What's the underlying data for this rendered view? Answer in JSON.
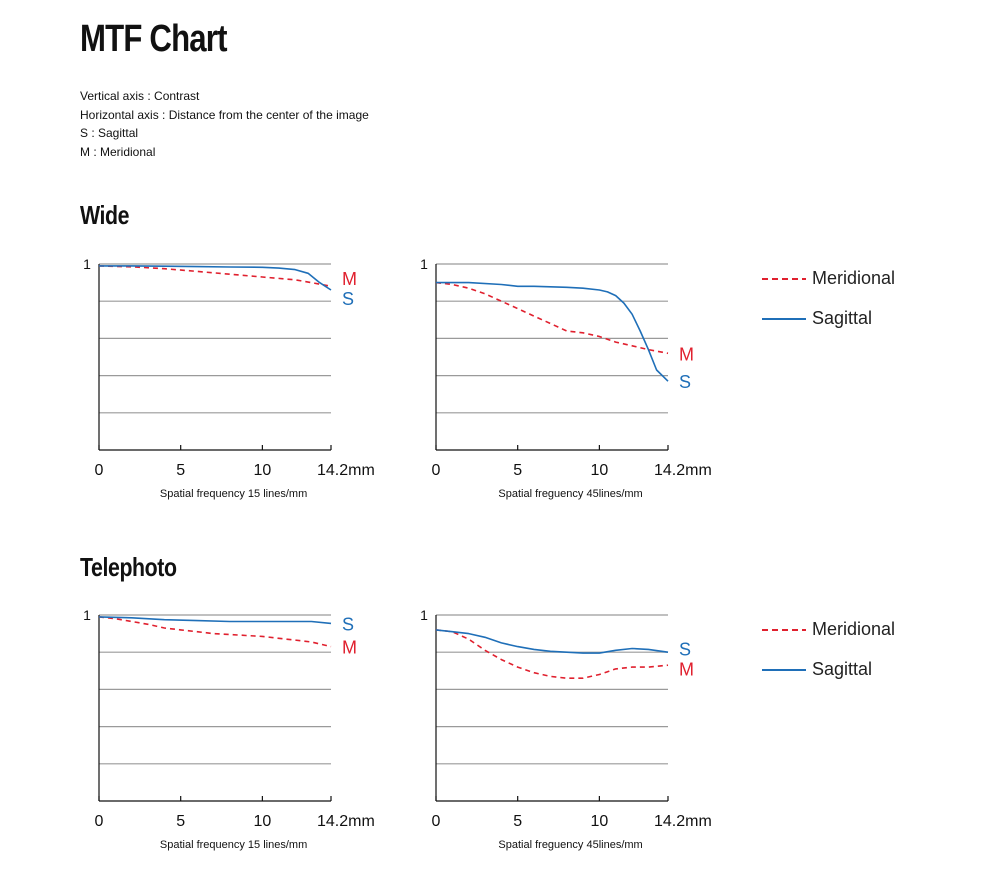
{
  "page": {
    "title": "MTF Chart",
    "notes": [
      "Vertical axis : Contrast",
      "Horizontal axis : Distance from the center of the image",
      "S : Sagittal",
      "M : Meridional"
    ]
  },
  "sections": [
    {
      "title": "Wide"
    },
    {
      "title": "Telephoto"
    }
  ],
  "legends": [
    {
      "items": [
        {
          "label": "Meridional",
          "style": "dashed",
          "color": "#e0202e"
        },
        {
          "label": "Sagittal",
          "style": "solid",
          "color": "#1f6fb8"
        }
      ]
    },
    {
      "items": [
        {
          "label": "Meridional",
          "style": "dashed",
          "color": "#e0202e"
        },
        {
          "label": "Sagittal",
          "style": "solid",
          "color": "#1f6fb8"
        }
      ]
    }
  ],
  "colors": {
    "meridional": "#e0202e",
    "sagittal": "#1f6fb8",
    "grid": "#9a9a9a"
  },
  "chart_data": [
    {
      "type": "line",
      "section": "Wide",
      "xlabel": "Spatial frequency 15 lines/mm",
      "xticks": [
        "0",
        "5",
        "10",
        "14.2mm"
      ],
      "xtick_values": [
        0,
        5,
        10,
        14.2
      ],
      "ytick_label": "1",
      "xlim": [
        0,
        14.2
      ],
      "ylim": [
        0,
        1
      ],
      "grid": true,
      "series": [
        {
          "name": "M",
          "style": "dashed",
          "color": "#e0202e",
          "x": [
            0,
            2,
            4,
            6,
            8,
            10,
            12,
            13,
            14.2
          ],
          "y": [
            0.99,
            0.985,
            0.975,
            0.96,
            0.945,
            0.93,
            0.915,
            0.9,
            0.88
          ]
        },
        {
          "name": "S",
          "style": "solid",
          "color": "#1f6fb8",
          "x": [
            0,
            2,
            4,
            6,
            8,
            10,
            11,
            12,
            12.8,
            13.5,
            14.2
          ],
          "y": [
            0.99,
            0.99,
            0.988,
            0.986,
            0.984,
            0.982,
            0.978,
            0.97,
            0.95,
            0.9,
            0.86
          ]
        }
      ]
    },
    {
      "type": "line",
      "section": "Wide",
      "xlabel": "Spatial freguency 45lines/mm",
      "xticks": [
        "0",
        "5",
        "10",
        "14.2mm"
      ],
      "xtick_values": [
        0,
        5,
        10,
        14.2
      ],
      "ytick_label": "1",
      "xlim": [
        0,
        14.2
      ],
      "ylim": [
        0,
        1
      ],
      "grid": true,
      "series": [
        {
          "name": "M",
          "style": "dashed",
          "color": "#e0202e",
          "x": [
            0,
            1,
            2,
            3,
            4,
            5,
            6,
            7,
            8,
            9,
            10,
            11,
            12,
            13,
            14.2
          ],
          "y": [
            0.9,
            0.89,
            0.87,
            0.84,
            0.8,
            0.76,
            0.72,
            0.68,
            0.64,
            0.63,
            0.61,
            0.58,
            0.56,
            0.54,
            0.52
          ]
        },
        {
          "name": "S",
          "style": "solid",
          "color": "#1f6fb8",
          "x": [
            0,
            2,
            4,
            5,
            6,
            8,
            9,
            10,
            10.5,
            11,
            11.5,
            12,
            12.5,
            13,
            13.5,
            14.2
          ],
          "y": [
            0.9,
            0.9,
            0.89,
            0.88,
            0.88,
            0.875,
            0.87,
            0.86,
            0.85,
            0.83,
            0.79,
            0.73,
            0.64,
            0.54,
            0.43,
            0.37
          ]
        }
      ]
    },
    {
      "type": "line",
      "section": "Telephoto",
      "xlabel": "Spatial frequency 15 lines/mm",
      "xticks": [
        "0",
        "5",
        "10",
        "14.2mm"
      ],
      "xtick_values": [
        0,
        5,
        10,
        14.2
      ],
      "ytick_label": "1",
      "xlim": [
        0,
        14.2
      ],
      "ylim": [
        0,
        1
      ],
      "grid": true,
      "series": [
        {
          "name": "M",
          "style": "dashed",
          "color": "#e0202e",
          "x": [
            0,
            1,
            2,
            3,
            4,
            5,
            6,
            7,
            8,
            9,
            10,
            11,
            12,
            13,
            14.2
          ],
          "y": [
            0.99,
            0.98,
            0.965,
            0.95,
            0.93,
            0.92,
            0.91,
            0.9,
            0.895,
            0.89,
            0.885,
            0.875,
            0.865,
            0.855,
            0.83
          ]
        },
        {
          "name": "S",
          "style": "solid",
          "color": "#1f6fb8",
          "x": [
            0,
            2,
            4,
            6,
            8,
            10,
            12,
            13,
            14.2
          ],
          "y": [
            0.99,
            0.985,
            0.975,
            0.97,
            0.965,
            0.965,
            0.965,
            0.965,
            0.955
          ]
        }
      ]
    },
    {
      "type": "line",
      "section": "Telephoto",
      "xlabel": "Spatial freguency 45lines/mm",
      "xticks": [
        "0",
        "5",
        "10",
        "14.2mm"
      ],
      "xtick_values": [
        0,
        5,
        10,
        14.2
      ],
      "ytick_label": "1",
      "xlim": [
        0,
        14.2
      ],
      "ylim": [
        0,
        1
      ],
      "grid": true,
      "series": [
        {
          "name": "M",
          "style": "dashed",
          "color": "#e0202e",
          "x": [
            0,
            1,
            2,
            3,
            4,
            5,
            6,
            7,
            8,
            9,
            10,
            11,
            12,
            13,
            14.2
          ],
          "y": [
            0.92,
            0.91,
            0.87,
            0.81,
            0.76,
            0.72,
            0.69,
            0.67,
            0.66,
            0.66,
            0.68,
            0.71,
            0.72,
            0.72,
            0.73
          ]
        },
        {
          "name": "S",
          "style": "solid",
          "color": "#1f6fb8",
          "x": [
            0,
            1,
            2,
            3,
            4,
            5,
            6,
            7,
            8,
            9,
            10,
            11,
            12,
            13,
            14.2
          ],
          "y": [
            0.92,
            0.91,
            0.9,
            0.88,
            0.85,
            0.83,
            0.815,
            0.805,
            0.8,
            0.795,
            0.795,
            0.81,
            0.82,
            0.815,
            0.8
          ]
        }
      ]
    }
  ]
}
